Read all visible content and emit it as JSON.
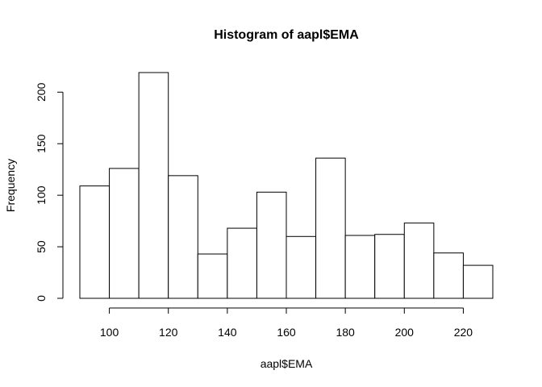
{
  "chart_data": {
    "type": "bar",
    "title": "Histogram of aapl$EMA",
    "xlabel": "aapl$EMA",
    "ylabel": "Frequency",
    "bins": [
      {
        "from": 90,
        "to": 100,
        "count": 109
      },
      {
        "from": 100,
        "to": 110,
        "count": 126
      },
      {
        "from": 110,
        "to": 120,
        "count": 219
      },
      {
        "from": 120,
        "to": 130,
        "count": 119
      },
      {
        "from": 130,
        "to": 140,
        "count": 43
      },
      {
        "from": 140,
        "to": 150,
        "count": 68
      },
      {
        "from": 150,
        "to": 160,
        "count": 103
      },
      {
        "from": 160,
        "to": 170,
        "count": 60
      },
      {
        "from": 170,
        "to": 180,
        "count": 136
      },
      {
        "from": 180,
        "to": 190,
        "count": 61
      },
      {
        "from": 190,
        "to": 200,
        "count": 62
      },
      {
        "from": 200,
        "to": 210,
        "count": 73
      },
      {
        "from": 210,
        "to": 220,
        "count": 44
      },
      {
        "from": 220,
        "to": 230,
        "count": 32
      }
    ],
    "xlim": [
      90,
      230
    ],
    "ylim": [
      0,
      219
    ],
    "xticks": [
      100,
      120,
      140,
      160,
      180,
      200,
      220
    ],
    "yticks": [
      0,
      50,
      100,
      150,
      200
    ],
    "grid": false,
    "legend": "none"
  }
}
